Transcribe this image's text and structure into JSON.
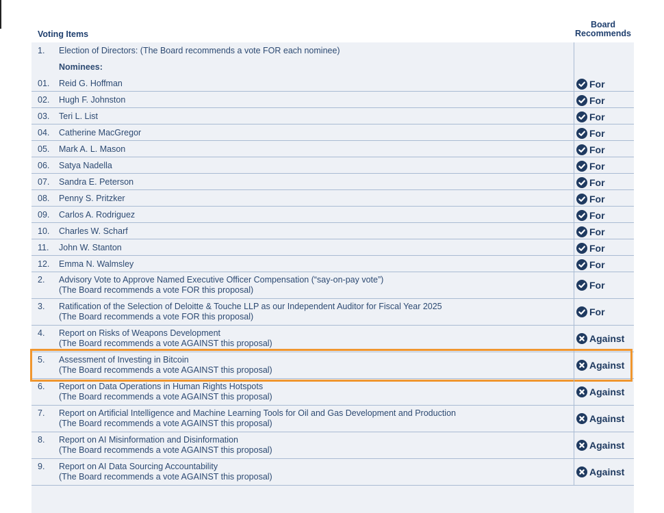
{
  "header": {
    "items": "Voting Items",
    "recommends": "Board Recommends"
  },
  "rows": [
    {
      "number": "1.",
      "title": "Election of Directors: (The Board recommends a vote FOR each nominee)"
    },
    {
      "title": "Nominees:",
      "bold": true
    },
    {
      "number": "01.",
      "title": "Reid G. Hoffman",
      "recommendation": {
        "label": "For",
        "icon": "check"
      }
    },
    {
      "number": "02.",
      "title": "Hugh F. Johnston",
      "recommendation": {
        "label": "For",
        "icon": "check"
      }
    },
    {
      "number": "03.",
      "title": "Teri L. List",
      "recommendation": {
        "label": "For",
        "icon": "check"
      }
    },
    {
      "number": "04.",
      "title": "Catherine MacGregor",
      "recommendation": {
        "label": "For",
        "icon": "check"
      }
    },
    {
      "number": "05.",
      "title": "Mark A. L. Mason",
      "recommendation": {
        "label": "For",
        "icon": "check"
      }
    },
    {
      "number": "06.",
      "title": "Satya Nadella",
      "recommendation": {
        "label": "For",
        "icon": "check"
      }
    },
    {
      "number": "07.",
      "title": "Sandra E. Peterson",
      "recommendation": {
        "label": "For",
        "icon": "check"
      }
    },
    {
      "number": "08.",
      "title": "Penny S. Pritzker",
      "recommendation": {
        "label": "For",
        "icon": "check"
      }
    },
    {
      "number": "09.",
      "title": "Carlos A. Rodriguez",
      "recommendation": {
        "label": "For",
        "icon": "check"
      }
    },
    {
      "number": "10.",
      "title": "Charles W. Scharf",
      "recommendation": {
        "label": "For",
        "icon": "check"
      }
    },
    {
      "number": "11.",
      "title": "John W. Stanton",
      "recommendation": {
        "label": "For",
        "icon": "check"
      }
    },
    {
      "number": "12.",
      "title": "Emma N. Walmsley",
      "recommendation": {
        "label": "For",
        "icon": "check"
      }
    },
    {
      "number": "2.",
      "title": "Advisory Vote to Approve Named Executive Officer Compensation (“say-on-pay vote”)",
      "note": "(The Board recommends a vote FOR this proposal)",
      "recommendation": {
        "label": "For",
        "icon": "check"
      }
    },
    {
      "number": "3.",
      "title": "Ratification of the Selection of Deloitte & Touche LLP as our Independent Auditor for Fiscal Year 2025",
      "note": "(The Board recommends a vote FOR this proposal)",
      "recommendation": {
        "label": "For",
        "icon": "check"
      }
    },
    {
      "number": "4.",
      "title": "Report on Risks of Weapons Development",
      "note": "(The Board recommends a vote AGAINST this proposal)",
      "recommendation": {
        "label": "Against",
        "icon": "cross"
      },
      "clipped": true
    },
    {
      "number": "5.",
      "title": "Assessment of Investing in Bitcoin",
      "note": "(The Board recommends a vote AGAINST this proposal)",
      "recommendation": {
        "label": "Against",
        "icon": "cross"
      },
      "highlight": true
    },
    {
      "number": "6.",
      "title": "Report on Data Operations in Human Rights Hotspots",
      "note": "(The Board recommends a vote AGAINST this proposal)",
      "recommendation": {
        "label": "Against",
        "icon": "cross"
      }
    },
    {
      "number": "7.",
      "title": "Report on Artificial Intelligence and Machine Learning Tools for Oil and Gas Development and Production",
      "note": "(The Board recommends a vote AGAINST this proposal)",
      "recommendation": {
        "label": "Against",
        "icon": "cross"
      }
    },
    {
      "number": "8.",
      "title": "Report on AI Misinformation and Disinformation",
      "note": "(The Board recommends a vote AGAINST this proposal)",
      "recommendation": {
        "label": "Against",
        "icon": "cross"
      }
    },
    {
      "number": "9.",
      "title": "Report on AI Data Sourcing Accountability",
      "note": "(The Board recommends a vote AGAINST this proposal)",
      "recommendation": {
        "label": "Against",
        "icon": "cross"
      }
    }
  ]
}
